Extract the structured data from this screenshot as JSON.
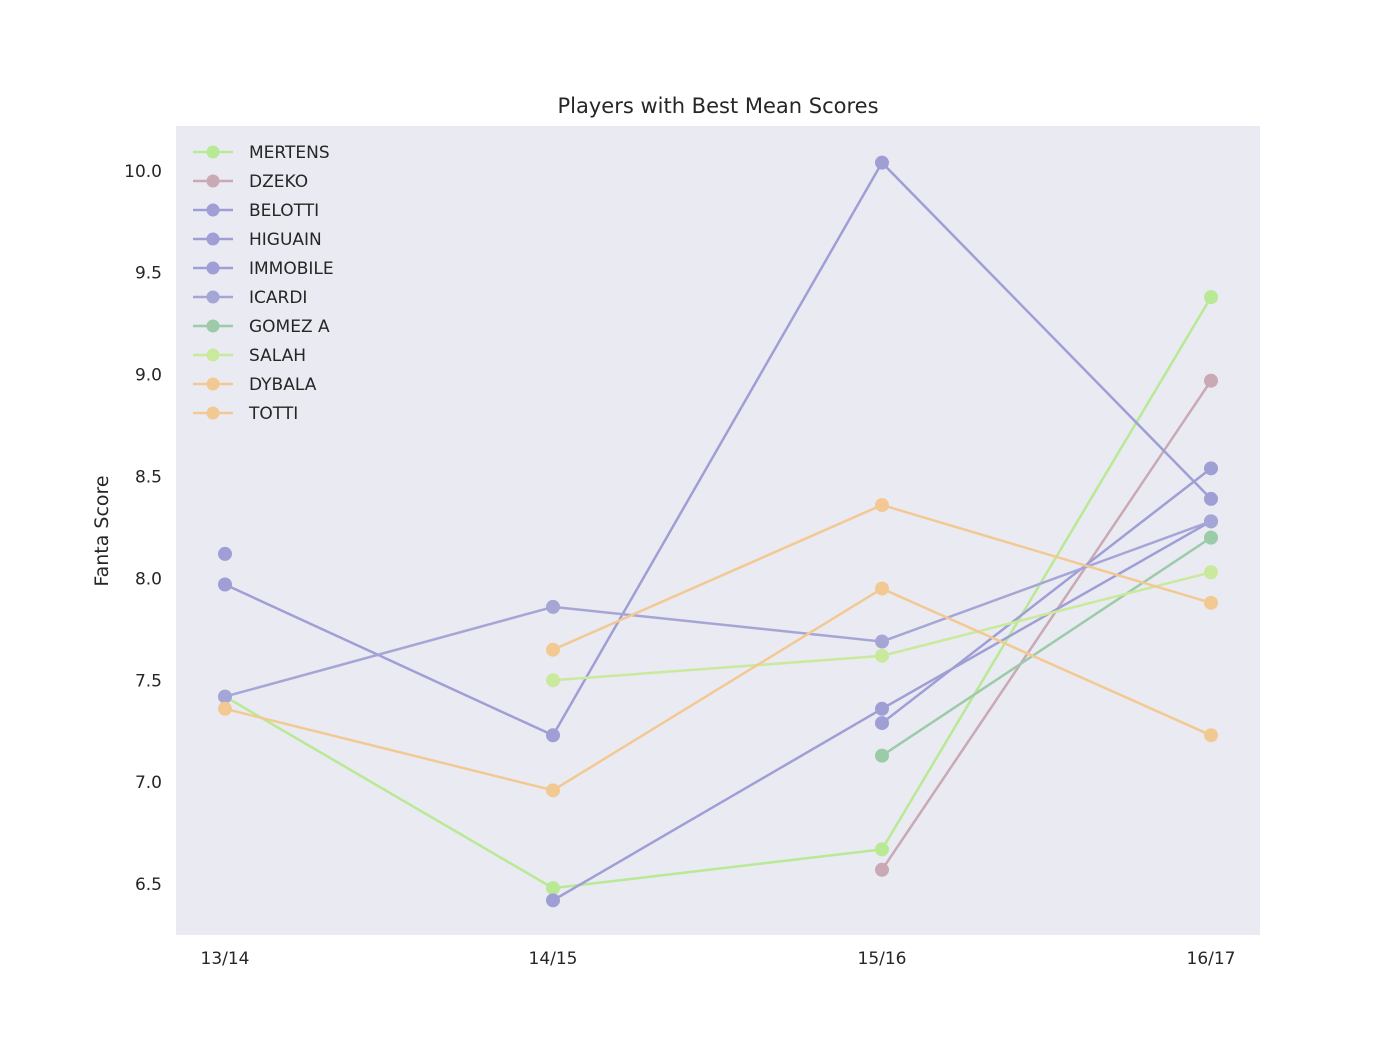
{
  "chart_data": {
    "type": "line",
    "title": "Players with Best Mean Scores",
    "xlabel": "",
    "ylabel": "Fanta Score",
    "categories": [
      "13/14",
      "14/15",
      "15/16",
      "16/17"
    ],
    "ylim": [
      6.25,
      10.22
    ],
    "yticks": [
      6.5,
      7.0,
      7.5,
      8.0,
      8.5,
      9.0,
      9.5,
      10.0
    ],
    "ytick_labels": [
      "6.5",
      "7.0",
      "7.5",
      "8.0",
      "8.5",
      "9.0",
      "9.5",
      "10.0"
    ],
    "grid": false,
    "background": "#eaeaf2",
    "legend_position": "top-left",
    "series": [
      {
        "name": "MERTENS",
        "color": "#b8e994",
        "values": [
          7.42,
          6.48,
          6.67,
          9.38
        ]
      },
      {
        "name": "DZEKO",
        "color": "#c9a9b4",
        "values": [
          null,
          null,
          6.57,
          8.97
        ]
      },
      {
        "name": "BELOTTI",
        "color": "#9f9fd6",
        "values": [
          8.12,
          null,
          7.29,
          8.54
        ]
      },
      {
        "name": "HIGUAIN",
        "color": "#9f9fd6",
        "values": [
          7.97,
          7.23,
          10.04,
          8.39
        ]
      },
      {
        "name": "IMMOBILE",
        "color": "#9f9fd6",
        "values": [
          null,
          6.42,
          7.36,
          8.28
        ]
      },
      {
        "name": "ICARDI",
        "color": "#a5a6d6",
        "values": [
          7.42,
          7.86,
          7.69,
          8.28
        ]
      },
      {
        "name": "GOMEZ A",
        "color": "#9ccba8",
        "values": [
          null,
          null,
          7.13,
          8.2
        ]
      },
      {
        "name": "SALAH",
        "color": "#c9ea9c",
        "values": [
          null,
          7.5,
          7.62,
          8.03
        ]
      },
      {
        "name": "DYBALA",
        "color": "#f3c993",
        "values": [
          null,
          7.65,
          8.36,
          7.88
        ]
      },
      {
        "name": "TOTTI",
        "color": "#f3c993",
        "values": [
          7.36,
          6.96,
          7.95,
          7.23
        ]
      }
    ]
  }
}
